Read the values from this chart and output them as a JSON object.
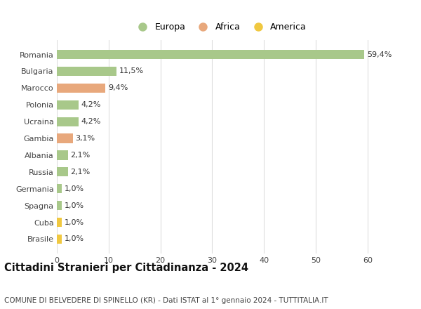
{
  "countries": [
    "Romania",
    "Bulgaria",
    "Marocco",
    "Polonia",
    "Ucraina",
    "Gambia",
    "Albania",
    "Russia",
    "Germania",
    "Spagna",
    "Cuba",
    "Brasile"
  ],
  "values": [
    59.4,
    11.5,
    9.4,
    4.2,
    4.2,
    3.1,
    2.1,
    2.1,
    1.0,
    1.0,
    1.0,
    1.0
  ],
  "labels": [
    "59,4%",
    "11,5%",
    "9,4%",
    "4,2%",
    "4,2%",
    "3,1%",
    "2,1%",
    "2,1%",
    "1,0%",
    "1,0%",
    "1,0%",
    "1,0%"
  ],
  "colors": [
    "#a8c88a",
    "#a8c88a",
    "#e8a87c",
    "#a8c88a",
    "#a8c88a",
    "#e8a87c",
    "#a8c88a",
    "#a8c88a",
    "#a8c88a",
    "#a8c88a",
    "#f0c840",
    "#f0c840"
  ],
  "legend": [
    {
      "label": "Europa",
      "color": "#a8c88a"
    },
    {
      "label": "Africa",
      "color": "#e8a87c"
    },
    {
      "label": "America",
      "color": "#f0c840"
    }
  ],
  "title": "Cittadini Stranieri per Cittadinanza - 2024",
  "subtitle": "COMUNE DI BELVEDERE DI SPINELLO (KR) - Dati ISTAT al 1° gennaio 2024 - TUTTITALIA.IT",
  "xlim": [
    0,
    63
  ],
  "xticks": [
    0,
    10,
    20,
    30,
    40,
    50,
    60
  ],
  "background_color": "#ffffff",
  "grid_color": "#dddddd",
  "title_fontsize": 10.5,
  "subtitle_fontsize": 7.5,
  "label_fontsize": 8,
  "tick_fontsize": 8,
  "legend_fontsize": 9,
  "bar_height": 0.55
}
